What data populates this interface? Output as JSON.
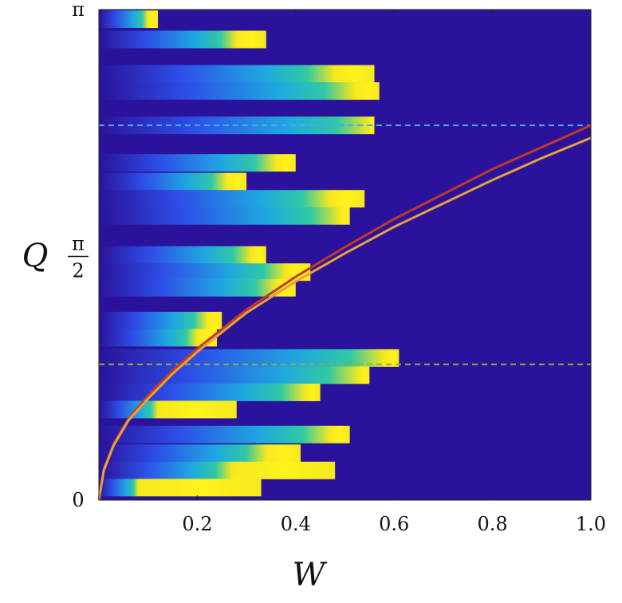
{
  "chart_data": {
    "type": "heatmap",
    "title": "",
    "xlabel": "W",
    "ylabel": "Q",
    "xlim": [
      0,
      1.0
    ],
    "ylim": [
      0,
      3.14159
    ],
    "x_ticks": [
      {
        "value": 0.2,
        "label": "0.2"
      },
      {
        "value": 0.4,
        "label": "0.4"
      },
      {
        "value": 0.6,
        "label": "0.6"
      },
      {
        "value": 0.8,
        "label": "0.8"
      },
      {
        "value": 1.0,
        "label": "1.0"
      }
    ],
    "y_ticks": [
      {
        "value": 0,
        "label": "0"
      },
      {
        "value": 1.5708,
        "num": "π",
        "den": "2"
      },
      {
        "value": 3.14159,
        "label": "π"
      }
    ],
    "colormap": [
      "#2b129b",
      "#2d4fe8",
      "#1fa8e0",
      "#31c8a4",
      "#f6e81e",
      "#fff21c"
    ],
    "background_color": "#2b129b",
    "bands": [
      {
        "q": 3.08,
        "w_start": 0.0,
        "w_end": 0.12,
        "peak": 0.1
      },
      {
        "q": 2.95,
        "w_start": 0.0,
        "w_end": 0.34,
        "peak": 0.28
      },
      {
        "q": 2.73,
        "w_start": 0.0,
        "w_end": 0.56,
        "peak": 0.48
      },
      {
        "q": 2.62,
        "w_start": 0.0,
        "w_end": 0.57,
        "peak": 0.52
      },
      {
        "q": 2.4,
        "w_start": 0.0,
        "w_end": 0.56,
        "peak": 0.55
      },
      {
        "q": 2.16,
        "w_start": 0.0,
        "w_end": 0.4,
        "peak": 0.36
      },
      {
        "q": 2.04,
        "w_start": 0.0,
        "w_end": 0.3,
        "peak": 0.26
      },
      {
        "q": 1.93,
        "w_start": 0.0,
        "w_end": 0.54,
        "peak": 0.47
      },
      {
        "q": 1.82,
        "w_start": 0.0,
        "w_end": 0.51,
        "peak": 0.49
      },
      {
        "q": 1.57,
        "w_start": 0.0,
        "w_end": 0.34,
        "peak": 0.31
      },
      {
        "q": 1.46,
        "w_start": 0.0,
        "w_end": 0.43,
        "peak": 0.38
      },
      {
        "q": 1.36,
        "w_start": 0.0,
        "w_end": 0.4,
        "peak": 0.36
      },
      {
        "q": 1.15,
        "w_start": 0.0,
        "w_end": 0.25,
        "peak": 0.22
      },
      {
        "q": 1.04,
        "w_start": 0.0,
        "w_end": 0.24,
        "peak": 0.2
      },
      {
        "q": 0.91,
        "w_start": 0.0,
        "w_end": 0.61,
        "peak": 0.58
      },
      {
        "q": 0.8,
        "w_start": 0.0,
        "w_end": 0.55,
        "peak": 0.53
      },
      {
        "q": 0.69,
        "w_start": 0.0,
        "w_end": 0.45,
        "peak": 0.42
      },
      {
        "q": 0.58,
        "w_start": 0.0,
        "w_end": 0.28,
        "peak": 0.12
      },
      {
        "q": 0.42,
        "w_start": 0.0,
        "w_end": 0.51,
        "peak": 0.47
      },
      {
        "q": 0.3,
        "w_start": 0.0,
        "w_end": 0.41,
        "peak": 0.34
      },
      {
        "q": 0.19,
        "w_start": 0.0,
        "w_end": 0.48,
        "peak": 0.27
      },
      {
        "q": 0.08,
        "w_start": 0.0,
        "w_end": 0.33,
        "peak": 0.08
      }
    ],
    "dashed_lines": [
      {
        "q": 2.4,
        "color": "#4aa8f0"
      },
      {
        "q": 0.87,
        "color": "#9aae3a"
      }
    ],
    "curves": [
      {
        "color": "#c0392b",
        "x": [
          0.0,
          0.01,
          0.03,
          0.06,
          0.1,
          0.15,
          0.2,
          0.3,
          0.4,
          0.5,
          0.6,
          0.7,
          0.8,
          0.9,
          1.0
        ],
        "y": [
          0.0,
          0.2,
          0.36,
          0.52,
          0.67,
          0.83,
          0.97,
          1.22,
          1.43,
          1.62,
          1.8,
          1.96,
          2.12,
          2.26,
          2.4
        ]
      },
      {
        "color": "#e8a23a",
        "x": [
          0.0,
          0.01,
          0.03,
          0.06,
          0.1,
          0.15,
          0.2,
          0.3,
          0.4,
          0.5,
          0.6,
          0.7,
          0.8,
          0.9,
          1.0
        ],
        "y": [
          0.0,
          0.19,
          0.35,
          0.51,
          0.65,
          0.81,
          0.95,
          1.2,
          1.4,
          1.58,
          1.75,
          1.9,
          2.05,
          2.19,
          2.32
        ]
      }
    ]
  }
}
